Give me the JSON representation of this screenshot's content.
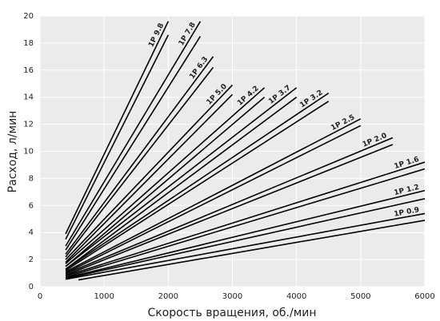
{
  "chart_data": {
    "type": "line",
    "xlabel": "Скорость вращения, об./мин",
    "ylabel": "Расход, л/мин",
    "xlim": [
      0,
      6000
    ],
    "xticks": [
      0,
      1000,
      2000,
      3000,
      4000,
      5000,
      6000
    ],
    "ylim": [
      0,
      20
    ],
    "yticks": [
      0,
      2,
      4,
      6,
      8,
      10,
      12,
      14,
      16,
      18,
      20
    ],
    "grid": true,
    "color": "#000000",
    "series": [
      {
        "name": "1P 9.8",
        "lines": [
          {
            "x": [
              400,
              2000
            ],
            "values": [
              3.9,
              19.6
            ]
          },
          {
            "x": [
              400,
              2000
            ],
            "values": [
              3.5,
              18.6
            ]
          }
        ]
      },
      {
        "name": "1P 7.8",
        "lines": [
          {
            "x": [
              400,
              2500
            ],
            "values": [
              3.0,
              19.6
            ]
          },
          {
            "x": [
              400,
              2500
            ],
            "values": [
              2.7,
              18.5
            ]
          }
        ]
      },
      {
        "name": "1P 6.3",
        "lines": [
          {
            "x": [
              400,
              2700
            ],
            "values": [
              2.4,
              17.0
            ]
          },
          {
            "x": [
              400,
              2700
            ],
            "values": [
              2.2,
              16.2
            ]
          }
        ]
      },
      {
        "name": "1P 5.0",
        "lines": [
          {
            "x": [
              400,
              3000
            ],
            "values": [
              2.0,
              14.9
            ]
          },
          {
            "x": [
              400,
              3000
            ],
            "values": [
              1.8,
              14.2
            ]
          }
        ]
      },
      {
        "name": "1P 4.2",
        "lines": [
          {
            "x": [
              400,
              3500
            ],
            "values": [
              1.7,
              14.7
            ]
          },
          {
            "x": [
              400,
              3500
            ],
            "values": [
              1.5,
              14.0
            ]
          }
        ]
      },
      {
        "name": "1P 3.7",
        "lines": [
          {
            "x": [
              400,
              4000
            ],
            "values": [
              1.5,
              14.7
            ]
          },
          {
            "x": [
              400,
              4000
            ],
            "values": [
              1.3,
              14.0
            ]
          }
        ]
      },
      {
        "name": "1P 3.2",
        "lines": [
          {
            "x": [
              400,
              4500
            ],
            "values": [
              1.3,
              14.3
            ]
          },
          {
            "x": [
              400,
              4500
            ],
            "values": [
              1.2,
              13.7
            ]
          }
        ]
      },
      {
        "name": "1P 2.5",
        "lines": [
          {
            "x": [
              400,
              5000
            ],
            "values": [
              1.1,
              12.4
            ]
          },
          {
            "x": [
              400,
              5000
            ],
            "values": [
              1.0,
              11.9
            ]
          }
        ]
      },
      {
        "name": "1P 2.0",
        "lines": [
          {
            "x": [
              400,
              5500
            ],
            "values": [
              0.95,
              11.0
            ]
          },
          {
            "x": [
              400,
              5500
            ],
            "values": [
              0.85,
              10.5
            ]
          }
        ]
      },
      {
        "name": "1P 1.6",
        "lines": [
          {
            "x": [
              400,
              6000
            ],
            "values": [
              0.8,
              9.2
            ]
          },
          {
            "x": [
              400,
              6000
            ],
            "values": [
              0.7,
              8.7
            ]
          }
        ]
      },
      {
        "name": "1P 1.2",
        "lines": [
          {
            "x": [
              400,
              6000
            ],
            "values": [
              0.65,
              7.1
            ]
          },
          {
            "x": [
              400,
              6000
            ],
            "values": [
              0.6,
              6.5
            ]
          }
        ]
      },
      {
        "name": "1P 0.9",
        "lines": [
          {
            "x": [
              400,
              6000
            ],
            "values": [
              0.55,
              5.4
            ]
          },
          {
            "x": [
              600,
              6000
            ],
            "values": [
              0.5,
              4.9
            ]
          }
        ]
      }
    ]
  }
}
